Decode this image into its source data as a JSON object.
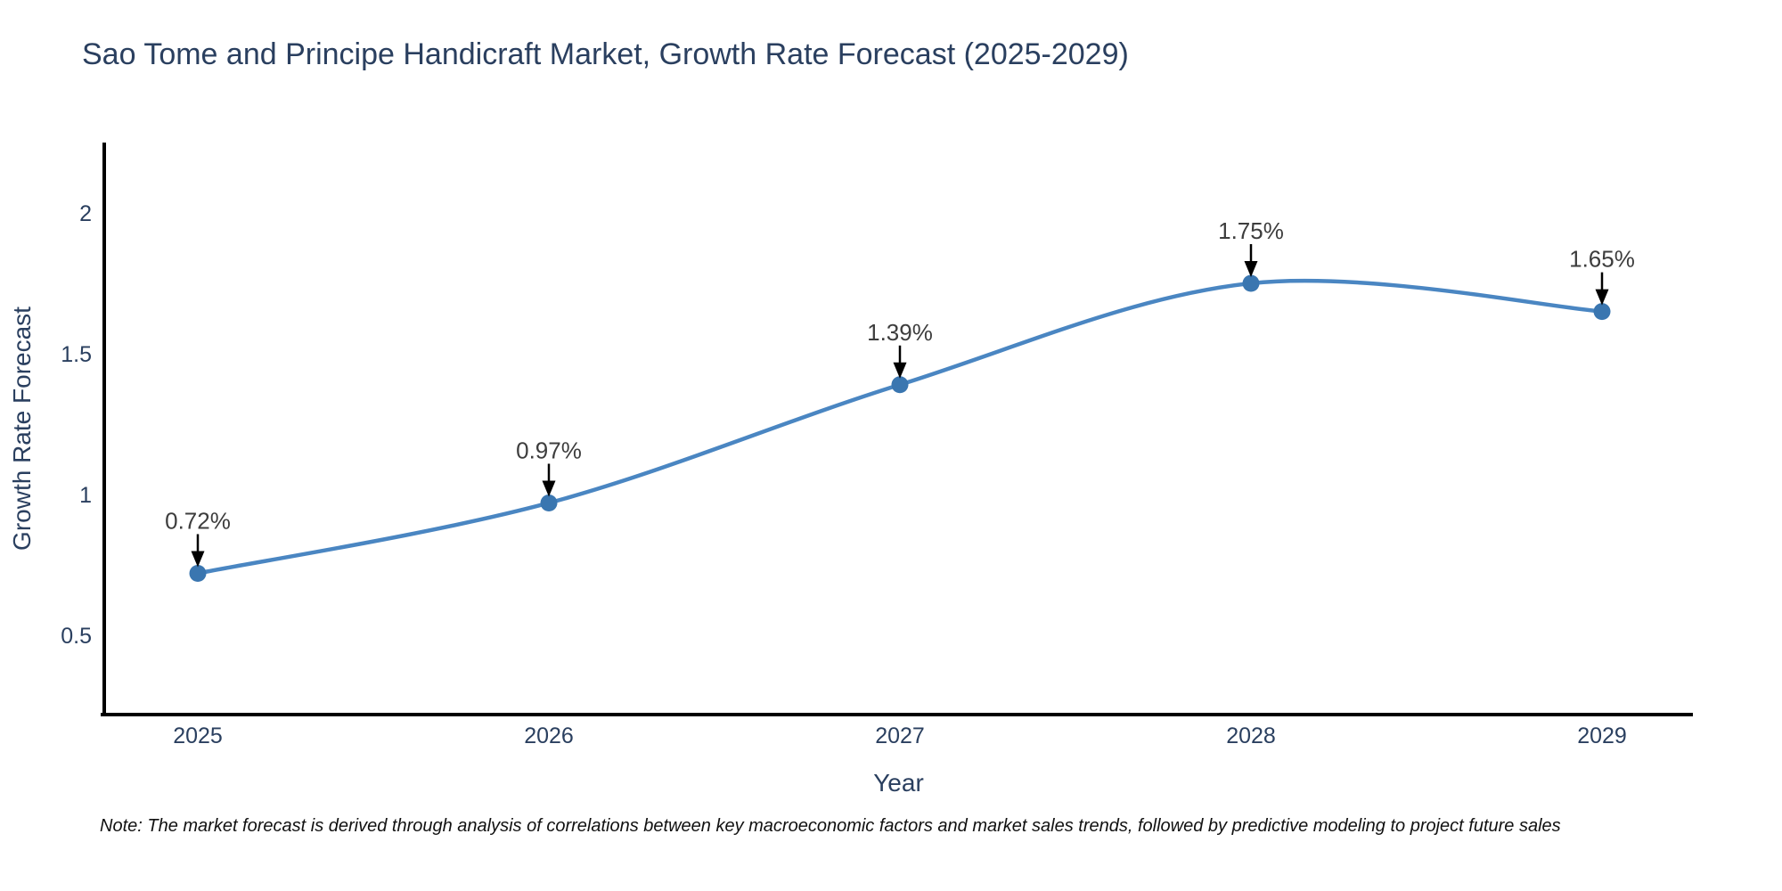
{
  "page": {
    "title": "Sao Tome and Principe Handicraft Market, Growth Rate Forecast (2025-2029)",
    "note": "Note: The market forecast is derived through analysis of correlations between key macroeconomic factors and market sales trends, followed by predictive modeling to project future sales"
  },
  "chart_data": {
    "type": "line",
    "title": "Sao Tome and Principe Handicraft Market, Growth Rate Forecast (2025-2029)",
    "xlabel": "Year",
    "ylabel": "Growth Rate Forecast",
    "x": [
      2025,
      2026,
      2027,
      2028,
      2029
    ],
    "y": [
      0.72,
      0.97,
      1.39,
      1.75,
      1.65
    ],
    "point_labels": [
      "0.72%",
      "0.97%",
      "1.39%",
      "1.75%",
      "1.65%"
    ],
    "yticks": [
      0.5,
      1,
      1.5,
      2
    ],
    "ylim": [
      0.22,
      2.25
    ],
    "line_shape": "spline",
    "grid": false,
    "legend": "none",
    "colors": {
      "line": "#4a86c2",
      "marker": "#3a76b0",
      "annotation_text": "#3d3d3d",
      "arrow": "#000000",
      "axis": "#000000",
      "tick_text": "#2a3f5f",
      "title_text": "#2a3f5f"
    }
  }
}
